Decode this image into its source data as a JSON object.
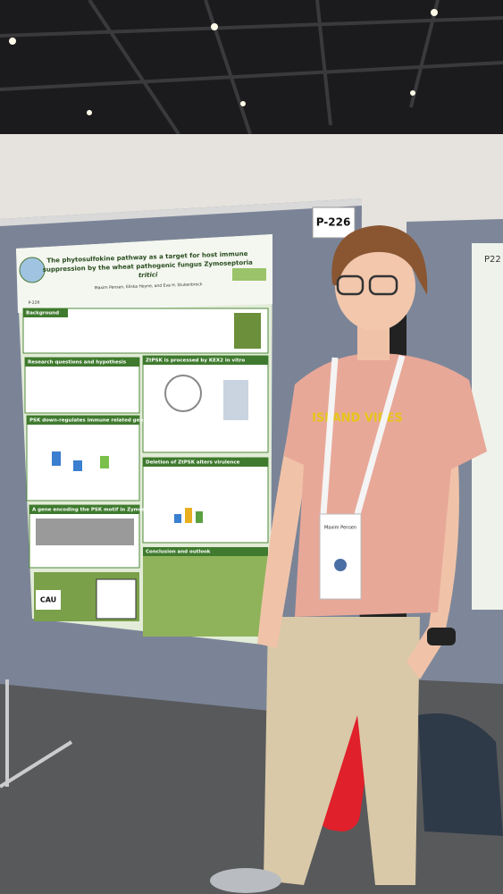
{
  "sign": {
    "board_number": "P-226",
    "next_board_number": "P22"
  },
  "poster": {
    "title_lines": [
      "The phytosulfokine pathway as a target for host immune",
      "suppression by the wheat pathogenic fungus Zymoseptoria",
      "tritici"
    ],
    "authors": "Maxim Pensen, Eliska Heyne, and Eva H. Stukenbrock",
    "poster_id": "P-226",
    "sections": [
      "Background",
      "Research questions and hypothesis",
      "ZtPSK is processed by KEX2 in vitro",
      "PSK down-regulates immune related genes in barley",
      "Deletion of ZtPSK alters virulence",
      "A gene encoding the PSK motif in Zymoseptoria spp",
      "Conclusion and outlook"
    ],
    "logo": "CAU"
  },
  "person": {
    "shirt_text": "ISLAND VIBES",
    "badge_name": "Maxim Pensen"
  }
}
